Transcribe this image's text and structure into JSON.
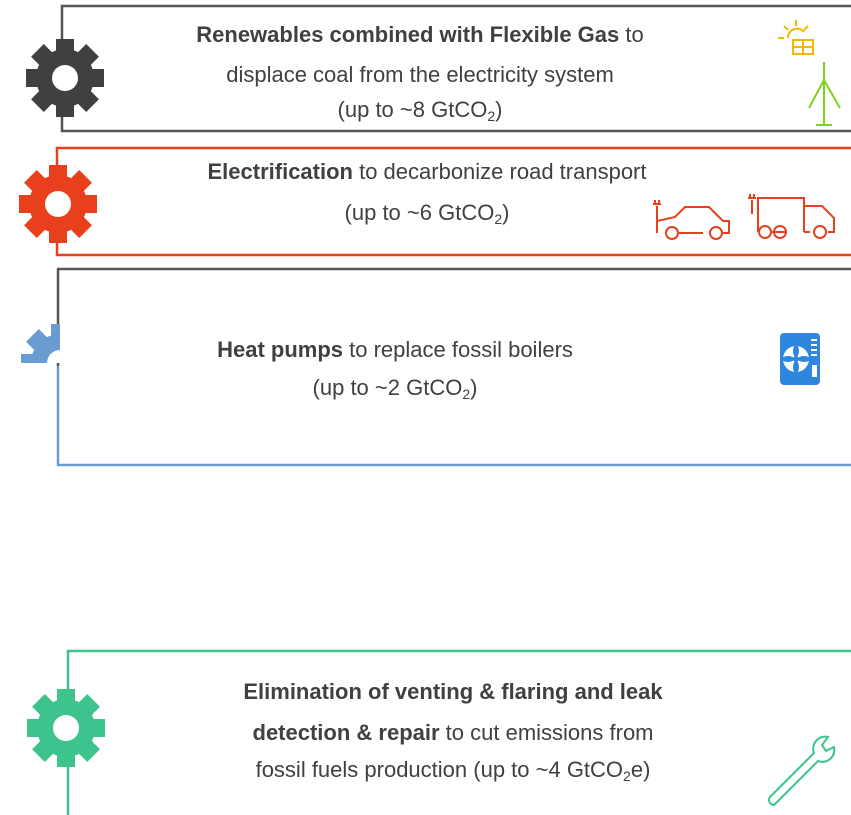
{
  "items": [
    {
      "lines": [
        {
          "bold": "Renewables combined with Flexible Gas",
          "text": " to"
        },
        {
          "text": "displace coal from the electricity system"
        },
        {
          "text": "(up to ~8 GtCO",
          "sub": "2",
          "after": ")"
        }
      ]
    },
    {
      "lines": [
        {
          "bold": "Electrification",
          "text": " to decarbonize road transport"
        },
        {
          "text": "(up to ~6 GtCO",
          "sub": "2",
          "after": ")"
        }
      ]
    },
    {
      "lines": [
        {
          "bold": "Heat pumps",
          "text": " to replace fossil boilers"
        },
        {
          "text": "(up to ~2 GtCO",
          "sub": "2",
          "after": ")"
        }
      ]
    },
    {
      "lines": [
        {
          "bold": "Elimination of venting & flaring and leak"
        },
        {
          "bold": "detection & repair",
          "text": " to cut emissions from"
        },
        {
          "text": "fossil fuels production (up to ~4 GtCO",
          "sub": "2",
          "after": "e)"
        }
      ]
    }
  ]
}
